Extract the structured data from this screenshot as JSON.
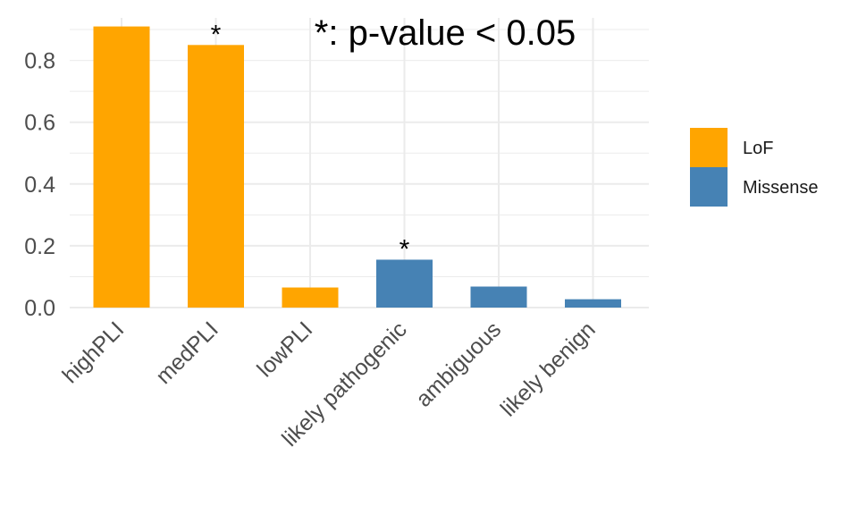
{
  "chart_data": {
    "type": "bar",
    "categories": [
      "highPLI",
      "medPLI",
      "lowPLI",
      "likely pathogenic",
      "ambiguous",
      "likely benign"
    ],
    "values": [
      0.91,
      0.85,
      0.065,
      0.155,
      0.068,
      0.027
    ],
    "category_series": [
      "LoF",
      "LoF",
      "LoF",
      "Missense",
      "Missense",
      "Missense"
    ],
    "series": [
      {
        "name": "LoF",
        "color": "#FFA500"
      },
      {
        "name": "Missense",
        "color": "#4682B4"
      }
    ],
    "yticks": [
      "0.0",
      "0.2",
      "0.4",
      "0.6",
      "0.8"
    ],
    "ylim": [
      0,
      0.92
    ],
    "grid": true,
    "legend_position": "right",
    "significance_marks": [
      {
        "category": "medPLI",
        "label": "*"
      },
      {
        "category": "likely pathogenic",
        "label": "*"
      }
    ],
    "annotation": "*: p-value < 0.05",
    "title": "",
    "xlabel": "",
    "ylabel": ""
  }
}
